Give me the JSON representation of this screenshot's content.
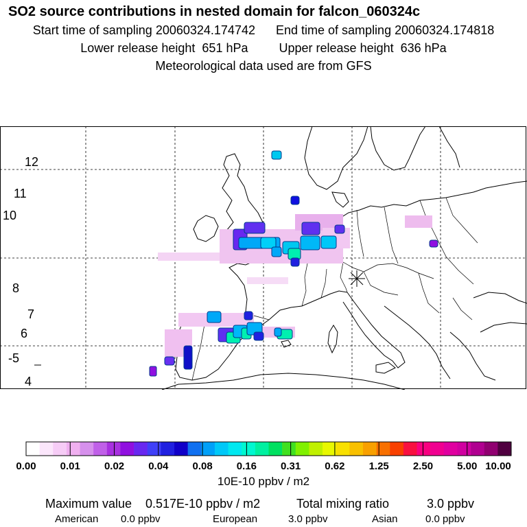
{
  "header": {
    "title": "SO2 source contributions in nested domain for falcon_060324c",
    "start_label": "Start time of sampling",
    "start_value": "20060324.174742",
    "end_label": "End time of sampling",
    "end_value": "20060324.174818",
    "lower_label": "Lower release height",
    "lower_value": "651 hPa",
    "upper_label": "Upper release height",
    "upper_value": "636 hPa",
    "met_line": "Meteorological data used are from GFS"
  },
  "map": {
    "flight_labels": [
      {
        "text": "12"
      },
      {
        "text": "11"
      },
      {
        "text": "10"
      },
      {
        "text": "8"
      },
      {
        "text": "7"
      },
      {
        "text": "6"
      },
      {
        "text": "-5"
      },
      {
        "text": "4"
      }
    ]
  },
  "legend": {
    "colors": [
      "#ffffff",
      "#fbe6fb",
      "#f6ccf6",
      "#f0b0f0",
      "#d690ec",
      "#c060e8",
      "#a830e0",
      "#9010e0",
      "#6828f0",
      "#4040f8",
      "#2020e0",
      "#1000c8",
      "#1070f0",
      "#00a0f8",
      "#00c8f8",
      "#00e8f0",
      "#00f8d0",
      "#00f0a0",
      "#00e060",
      "#40e020",
      "#80f000",
      "#c0f000",
      "#e8f800",
      "#f8e000",
      "#f8c000",
      "#f8a000",
      "#f87000",
      "#f84000",
      "#f81040",
      "#f80080",
      "#f00090",
      "#e000a0",
      "#d000a0",
      "#b00090",
      "#900070",
      "#500040"
    ],
    "ticks": [
      "0.00",
      "0.01",
      "0.02",
      "0.04",
      "0.08",
      "0.16",
      "0.31",
      "0.62",
      "1.25",
      "2.50",
      "5.00",
      "10.00"
    ],
    "units": "10E-10 ppbv / m2"
  },
  "summary": {
    "max_label": "Maximum value",
    "max_value": "0.517E-10 ppbv / m2",
    "total_label": "Total mixing ratio",
    "total_value": "3.0 ppbv",
    "american_label": "American",
    "american_value": "0.0 ppbv",
    "european_label": "European",
    "european_value": "3.0 ppbv",
    "asian_label": "Asian",
    "asian_value": "0.0 ppbv"
  }
}
